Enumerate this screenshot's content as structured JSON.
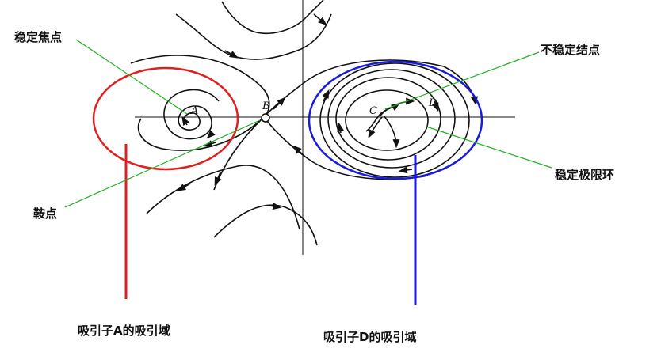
{
  "labels": {
    "stable_focus": "稳定焦点",
    "saddle": "鞍点",
    "unstable_node": "不稳定结点",
    "stable_limit_cycle": "稳定极限环",
    "basin_a": "吸引子A的吸引域",
    "basin_d": "吸引子D的吸引域"
  },
  "points": {
    "a": "A",
    "b": "B",
    "c": "C",
    "d": "D"
  },
  "colors": {
    "basin_a": "#e02020",
    "basin_d": "#1a1adf",
    "leader_lines": "#22b022",
    "trajectories": "#111111"
  }
}
